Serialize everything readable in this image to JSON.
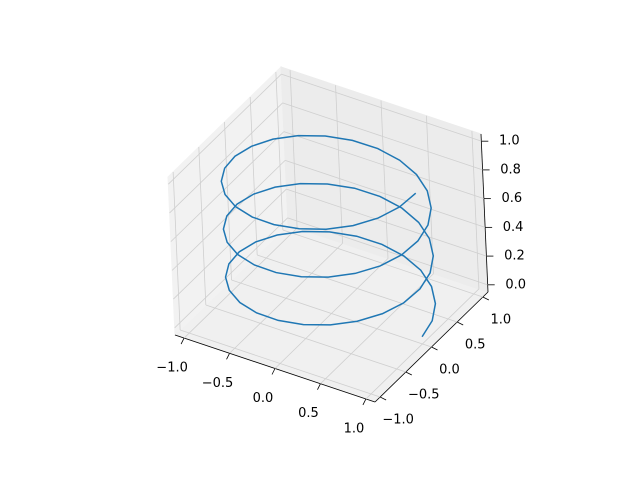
{
  "chart_data": {
    "type": "line3d",
    "xlim": [
      -1.1,
      1.1
    ],
    "ylim": [
      -1.1,
      1.1
    ],
    "zlim": [
      -0.05,
      1.05
    ],
    "xticks": [
      {
        "value": -1,
        "label": "−1.0"
      },
      {
        "value": -0.5,
        "label": "−0.5"
      },
      {
        "value": 0,
        "label": "0.0"
      },
      {
        "value": 0.5,
        "label": "0.5"
      },
      {
        "value": 1,
        "label": "1.0"
      }
    ],
    "yticks": [
      {
        "value": -1,
        "label": "−1.0"
      },
      {
        "value": -0.5,
        "label": "−0.5"
      },
      {
        "value": 0,
        "label": "0.0"
      },
      {
        "value": 0.5,
        "label": "0.5"
      },
      {
        "value": 1,
        "label": "1.0"
      }
    ],
    "zticks": [
      {
        "value": 0,
        "label": "0.0"
      },
      {
        "value": 0.2,
        "label": "0.2"
      },
      {
        "value": 0.4,
        "label": "0.4"
      },
      {
        "value": 0.6,
        "label": "0.6"
      },
      {
        "value": 0.8,
        "label": "0.8"
      },
      {
        "value": 1,
        "label": "1.0"
      }
    ],
    "grid": true,
    "series": [
      {
        "color": "#1f77b4",
        "x": [
          1,
          0.966,
          0.866,
          0.707,
          0.5,
          0.259,
          0,
          -0.259,
          -0.5,
          -0.707,
          -0.866,
          -0.966,
          -1,
          -0.966,
          -0.866,
          -0.707,
          -0.5,
          -0.259,
          0,
          0.259,
          0.5,
          0.707,
          0.866,
          0.966,
          1,
          0.966,
          0.866,
          0.707,
          0.5,
          0.259,
          0,
          -0.259,
          -0.5,
          -0.707,
          -0.866,
          -0.966,
          -1,
          -0.966,
          -0.866,
          -0.707,
          -0.5,
          -0.259,
          0,
          0.259,
          0.5,
          0.707,
          0.866,
          0.966,
          1,
          0.966,
          0.866,
          0.707,
          0.5,
          0.259,
          0,
          -0.259,
          -0.5,
          -0.707,
          -0.866,
          -0.966,
          -1,
          -0.966,
          -0.866,
          -0.707,
          -0.5,
          -0.259,
          0,
          0.259,
          0.5,
          0.707,
          0.866,
          0.966,
          1
        ],
        "y": [
          0,
          0.259,
          0.5,
          0.707,
          0.866,
          0.966,
          1,
          0.966,
          0.866,
          0.707,
          0.5,
          0.259,
          0,
          -0.259,
          -0.5,
          -0.707,
          -0.866,
          -0.966,
          -1,
          -0.966,
          -0.866,
          -0.707,
          -0.5,
          -0.259,
          0,
          0.259,
          0.5,
          0.707,
          0.866,
          0.966,
          1,
          0.966,
          0.866,
          0.707,
          0.5,
          0.259,
          0,
          -0.259,
          -0.5,
          -0.707,
          -0.866,
          -0.966,
          -1,
          -0.966,
          -0.866,
          -0.707,
          -0.5,
          -0.259,
          0,
          0.259,
          0.5,
          0.707,
          0.866,
          0.966,
          1,
          0.966,
          0.866,
          0.707,
          0.5,
          0.259,
          0,
          -0.259,
          -0.5,
          -0.707,
          -0.866,
          -0.966,
          -1,
          -0.966,
          -0.866,
          -0.707,
          -0.5,
          -0.259,
          0
        ],
        "z": [
          0,
          0.014,
          0.028,
          0.042,
          0.056,
          0.069,
          0.083,
          0.097,
          0.111,
          0.125,
          0.139,
          0.153,
          0.167,
          0.181,
          0.194,
          0.208,
          0.222,
          0.236,
          0.25,
          0.264,
          0.278,
          0.292,
          0.306,
          0.319,
          0.333,
          0.347,
          0.361,
          0.375,
          0.389,
          0.403,
          0.417,
          0.431,
          0.444,
          0.458,
          0.472,
          0.486,
          0.5,
          0.514,
          0.528,
          0.542,
          0.556,
          0.569,
          0.583,
          0.597,
          0.611,
          0.625,
          0.639,
          0.653,
          0.667,
          0.681,
          0.694,
          0.708,
          0.722,
          0.736,
          0.75,
          0.764,
          0.778,
          0.792,
          0.806,
          0.819,
          0.833,
          0.847,
          0.861,
          0.875,
          0.889,
          0.903,
          0.917,
          0.931,
          0.944,
          0.958,
          0.972,
          0.986,
          1
        ]
      }
    ]
  }
}
